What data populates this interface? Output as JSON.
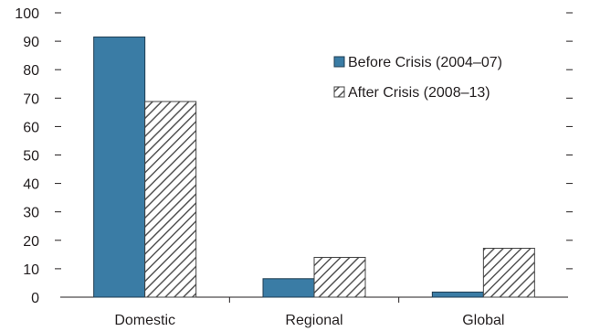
{
  "chart_data": {
    "type": "bar",
    "categories": [
      "Domestic",
      "Regional",
      "Global"
    ],
    "series": [
      {
        "name": "Before Crisis (2004–07)",
        "values": [
          91.5,
          6.5,
          1.8
        ],
        "fill": "solid",
        "color": "#3a7ca5"
      },
      {
        "name": "After Crisis (2008–13)",
        "values": [
          68.8,
          14.0,
          17.2
        ],
        "fill": "diagonal-hatch",
        "color": "#555555"
      }
    ],
    "ylim": [
      0,
      100
    ],
    "yticks": [
      0,
      10,
      20,
      30,
      40,
      50,
      60,
      70,
      80,
      90,
      100
    ],
    "right_axis_ticks": true,
    "grid": false,
    "legend_position": "top-right",
    "title": "",
    "xlabel": "",
    "ylabel": ""
  }
}
